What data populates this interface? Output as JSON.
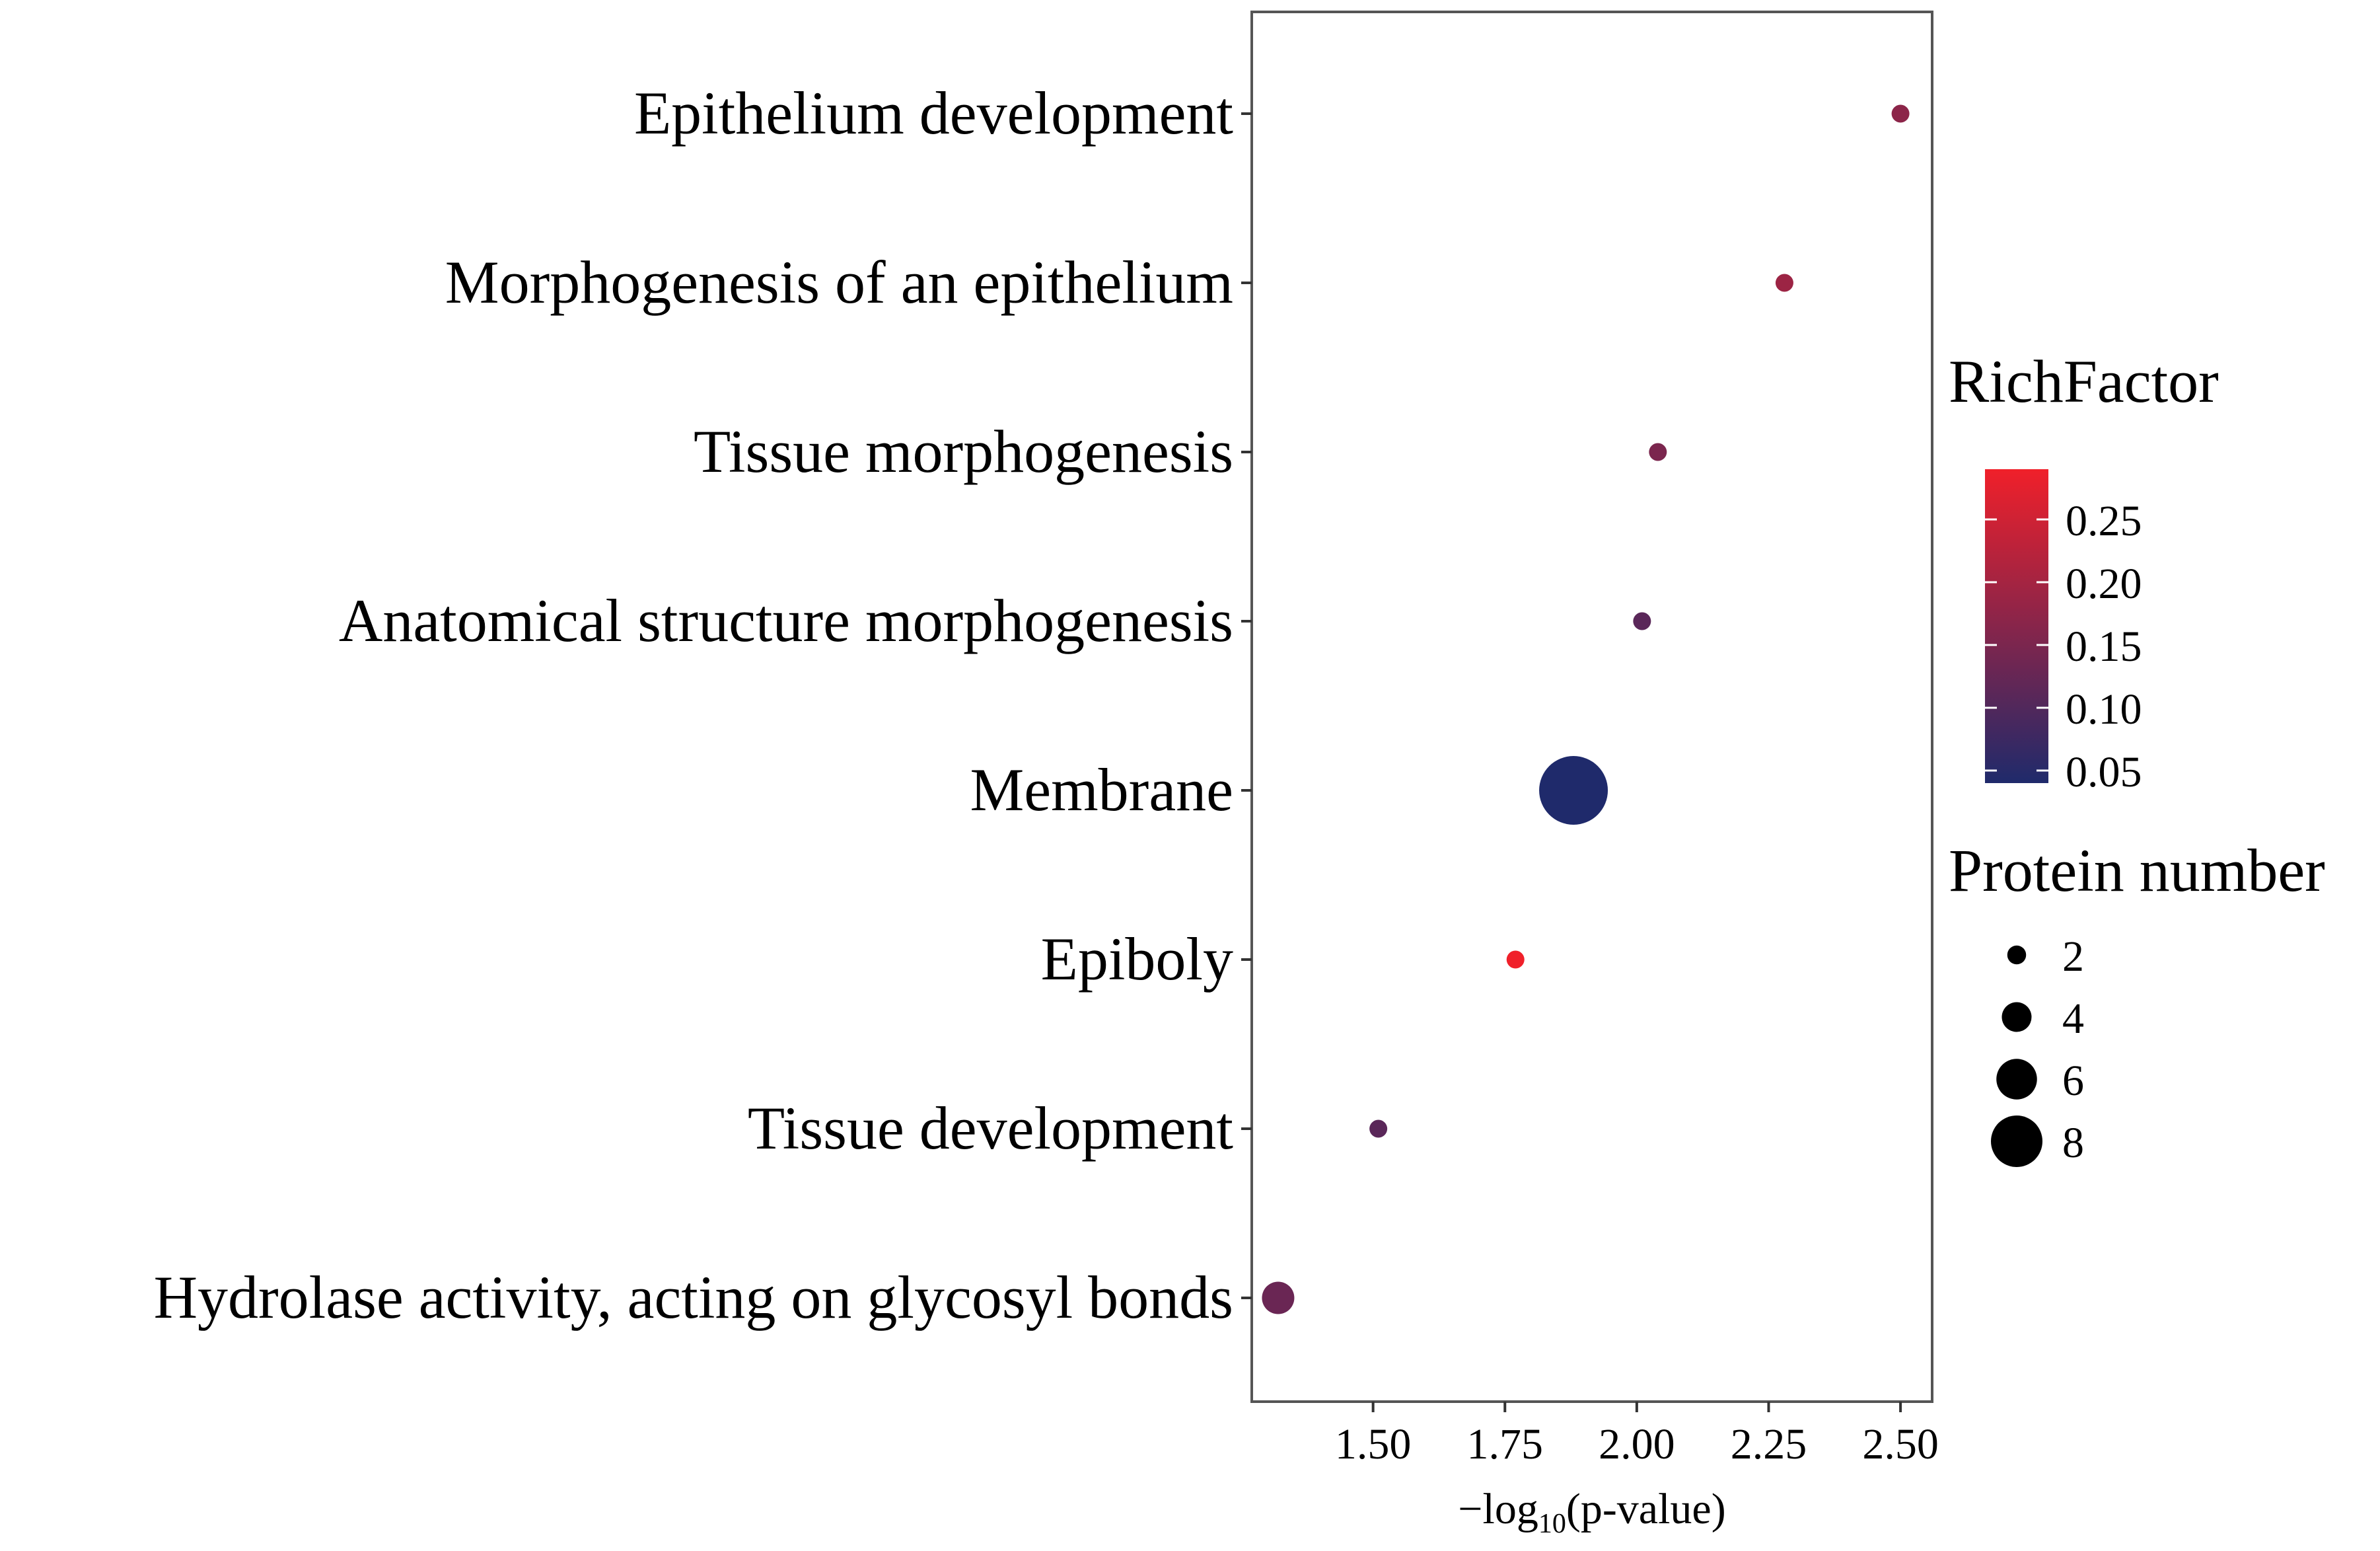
{
  "chart_data": {
    "type": "scatter",
    "title": "",
    "xlabel_prefix": "−log",
    "xlabel_sub": "10",
    "xlabel_suffix": "(p-value)",
    "ylabel": "",
    "xlim": [
      1.27,
      2.56
    ],
    "x_ticks": [
      1.5,
      1.75,
      2.0,
      2.25,
      2.5
    ],
    "x_tick_labels": [
      "1.50",
      "1.75",
      "2.00",
      "2.25",
      "2.50"
    ],
    "points": [
      {
        "category": "Epithelium development",
        "x": 2.5,
        "protein_number": 1,
        "rich_factor": 0.17
      },
      {
        "category": "Morphogenesis of an epithelium",
        "x": 2.28,
        "protein_number": 1,
        "rich_factor": 0.19
      },
      {
        "category": "Tissue morphogenesis",
        "x": 2.04,
        "protein_number": 1,
        "rich_factor": 0.15
      },
      {
        "category": "Anatomical structure morphogenesis",
        "x": 2.01,
        "protein_number": 1,
        "rich_factor": 0.11
      },
      {
        "category": "Membrane",
        "x": 1.88,
        "protein_number": 8,
        "rich_factor": 0.04
      },
      {
        "category": "Epiboly",
        "x": 1.77,
        "protein_number": 1,
        "rich_factor": 0.29
      },
      {
        "category": "Tissue development",
        "x": 1.51,
        "protein_number": 1,
        "rich_factor": 0.11
      },
      {
        "category": "Hydrolase activity, acting on glycosyl bonds",
        "x": 1.32,
        "protein_number": 3,
        "rich_factor": 0.13
      }
    ],
    "color_legend": {
      "title": "RichFactor",
      "range": [
        0.04,
        0.29
      ],
      "ticks": [
        0.05,
        0.1,
        0.15,
        0.2,
        0.25
      ],
      "tick_labels": [
        "0.05",
        "0.10",
        "0.15",
        "0.20",
        "0.25"
      ],
      "low_color": "#1f2a6b",
      "high_color": "#f0202a"
    },
    "size_legend": {
      "title": "Protein number",
      "values": [
        2,
        4,
        6,
        8
      ],
      "labels": [
        "2",
        "4",
        "6",
        "8"
      ]
    }
  }
}
